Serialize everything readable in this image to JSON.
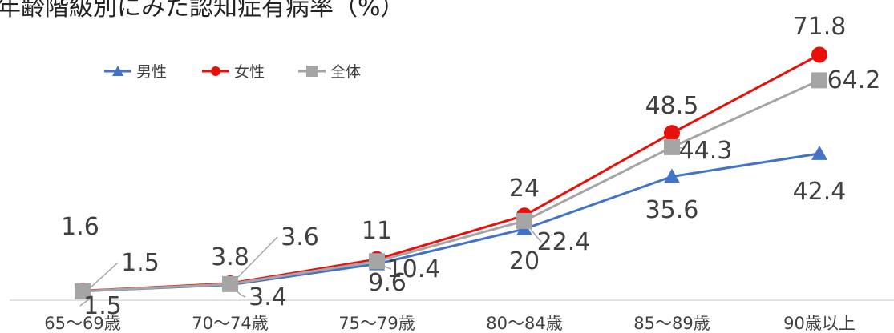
{
  "chart_data": {
    "type": "line",
    "title": "年齢階級別にみた認知症有病率（%）",
    "categories": [
      "65〜69歳",
      "70〜74歳",
      "75〜79歳",
      "80〜84歳",
      "85〜89歳",
      "90歳以上"
    ],
    "series": [
      {
        "name": "男性",
        "values": [
          1.5,
          3.4,
          9.6,
          20,
          35.6,
          42.4
        ],
        "color": "#4472C4",
        "marker": "triangle"
      },
      {
        "name": "女性",
        "values": [
          1.6,
          3.8,
          11,
          24,
          48.5,
          71.8
        ],
        "color": "#E8100A",
        "marker": "circle"
      },
      {
        "name": "全体",
        "values": [
          1.5,
          3.6,
          10.4,
          22.4,
          44.3,
          64.2
        ],
        "color": "#A5A5A5",
        "marker": "square"
      }
    ],
    "data_labels": [
      [
        "1.5",
        "3.4",
        "9.6",
        "20",
        "35.6",
        "42.4"
      ],
      [
        "1.6",
        "3.8",
        "11",
        "24",
        "48.5",
        "71.8"
      ],
      [
        "1.5",
        "3.6",
        "10.4",
        "22.4",
        "44.3",
        "64.2"
      ]
    ],
    "ylim": [
      0,
      80
    ],
    "grid": false,
    "legend_position": "top-left",
    "xlabel": "",
    "ylabel": ""
  }
}
